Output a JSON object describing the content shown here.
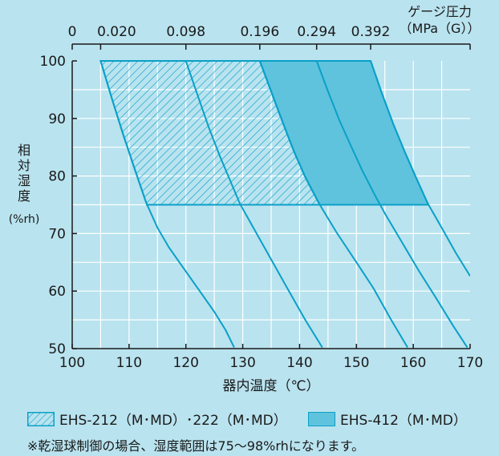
{
  "chart_data": {
    "type": "area",
    "xlabel": "器内温度（℃）",
    "ylabel": "相対湿度（%rh）",
    "ylabel_lines": [
      "相",
      "対",
      "湿",
      "度"
    ],
    "ylabel_unit": "(%rh)",
    "x_ticks": [
      100,
      110,
      120,
      130,
      140,
      150,
      160,
      170
    ],
    "y_ticks": [
      50,
      60,
      70,
      80,
      90,
      100
    ],
    "xlim": [
      100,
      170
    ],
    "ylim": [
      50,
      100
    ],
    "grid": true,
    "top_axis": {
      "title_lines": [
        "ゲージ圧力",
        "（MPa（G））"
      ],
      "ticks": [
        {
          "label": "0",
          "x": 100
        },
        {
          "label": "0.020",
          "x": 105
        },
        {
          "label": "0.098",
          "x": 120
        },
        {
          "label": "0.196",
          "x": 133
        },
        {
          "label": "0.294",
          "x": 143
        },
        {
          "label": "0.392",
          "x": 152.5
        },
        {
          "label": "",
          "x": 170
        }
      ]
    },
    "pressure_curves": [
      {
        "pressure": "0.020",
        "points": [
          [
            105,
            100
          ],
          [
            107,
            93.4
          ],
          [
            109,
            87.1
          ],
          [
            111,
            81.2
          ],
          [
            113,
            75.4
          ],
          [
            115,
            71.0
          ],
          [
            117,
            67.6
          ],
          [
            119,
            64.8
          ],
          [
            121,
            62.0
          ],
          [
            123,
            59.2
          ],
          [
            125,
            56.4
          ],
          [
            127,
            53.2
          ],
          [
            128.5,
            50.2
          ]
        ]
      },
      {
        "pressure": "0.098",
        "points": [
          [
            120,
            100
          ],
          [
            122,
            94.2
          ],
          [
            124,
            88.5
          ],
          [
            126,
            83.4
          ],
          [
            128,
            78.7
          ],
          [
            129.5,
            75.2
          ],
          [
            132,
            70.8
          ],
          [
            135,
            65.5
          ],
          [
            138,
            60.2
          ],
          [
            141,
            55.0
          ],
          [
            144,
            50.2
          ]
        ]
      },
      {
        "pressure": "0.196",
        "points": [
          [
            133,
            100
          ],
          [
            135,
            94.7
          ],
          [
            137,
            89.4
          ],
          [
            139,
            84.3
          ],
          [
            141,
            79.8
          ],
          [
            143.5,
            75.1
          ],
          [
            146.5,
            70.2
          ],
          [
            150,
            65.0
          ],
          [
            153,
            60.5
          ],
          [
            156,
            55.2
          ],
          [
            159,
            50.2
          ]
        ]
      },
      {
        "pressure": "0.294",
        "points": [
          [
            143,
            100
          ],
          [
            145,
            94.7
          ],
          [
            147,
            89.7
          ],
          [
            149,
            85.3
          ],
          [
            151,
            81.0
          ],
          [
            153.5,
            76.2
          ],
          [
            155,
            73.5
          ],
          [
            158,
            68.5
          ],
          [
            161,
            63.5
          ],
          [
            164,
            58.8
          ],
          [
            167,
            54.0
          ],
          [
            169.5,
            50.2
          ]
        ]
      },
      {
        "pressure": "0.392",
        "points": [
          [
            152.5,
            100
          ],
          [
            154.5,
            94.3
          ],
          [
            156.5,
            89.0
          ],
          [
            158.5,
            84.2
          ],
          [
            160.5,
            79.7
          ],
          [
            162.5,
            75.3
          ],
          [
            165,
            71.0
          ],
          [
            167.5,
            66.6
          ],
          [
            170,
            62.6
          ]
        ]
      }
    ],
    "series": [
      {
        "name": "EHS-212（M･MD）･222（M･MD）",
        "style": "hatched",
        "x_range": [
          105,
          143.5
        ],
        "y_range": [
          75,
          100
        ],
        "left_boundary": "0.020",
        "right_boundary": "0.196"
      },
      {
        "name": "EHS-412（M･MD）",
        "style": "solid",
        "x_range": [
          133,
          162.5
        ],
        "y_range": [
          75,
          100
        ],
        "left_boundary": "0.196",
        "right_boundary": "0.392"
      }
    ],
    "colors": {
      "background": "#b9e3ef",
      "grid": "#ffffff",
      "curve": "#0aa0c8",
      "fill": "#5fc3de",
      "hatch": "#0aa0c8",
      "axis": "#1a1a1a"
    }
  },
  "note": "※乾湿球制御の場合、湿度範囲は75〜98%rhになります。"
}
